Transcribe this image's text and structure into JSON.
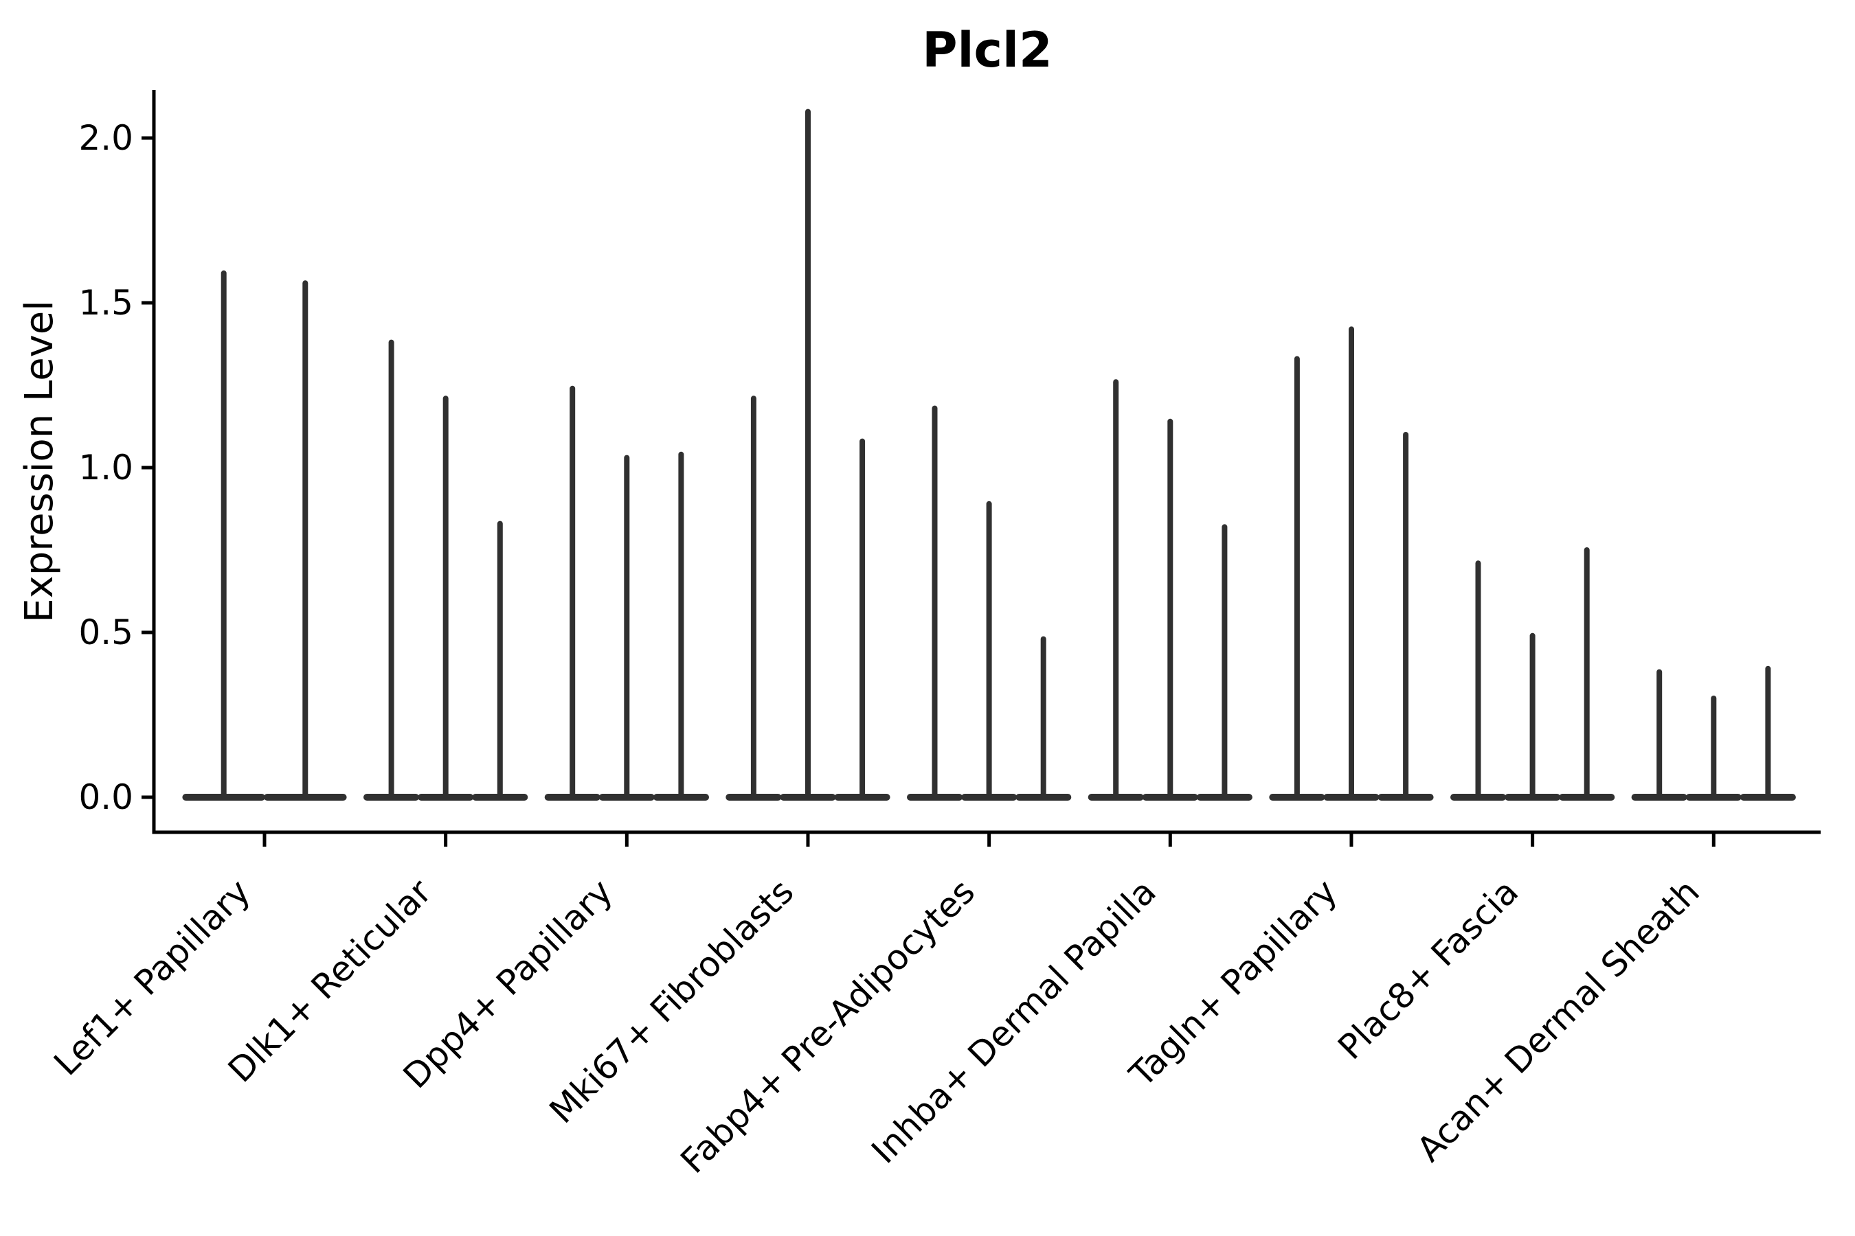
{
  "title": "Plcl2",
  "axes": {
    "ylabel": "Expression Level",
    "ytick_labels": [
      "0.0",
      "0.5",
      "1.0",
      "1.5",
      "2.0"
    ],
    "yticks": [
      0.0,
      0.5,
      1.0,
      1.5,
      2.0
    ]
  },
  "colors": {
    "background": "#ffffff",
    "violin_ink": "#303030",
    "axis_ink": "#000000"
  },
  "chart_data": {
    "type": "violin",
    "title": "Plcl2",
    "xlabel": "",
    "ylabel": "Expression Level",
    "yticks": [
      0.0,
      0.5,
      1.0,
      1.5,
      2.0
    ],
    "ytick_labels": [
      "0.0",
      "0.5",
      "1.0",
      "1.5",
      "2.0"
    ],
    "ylim": [
      -0.106,
      2.145
    ],
    "grid": false,
    "legend": "none",
    "categories": [
      "Lef1+ Papillary",
      "Dlk1+ Reticular",
      "Dpp4+ Papillary",
      "Mki67+ Fibroblasts",
      "Fabp4+ Pre-Adipocytes",
      "Inhba+ Dermal Papilla",
      "Tagln+ Papillary",
      "Plac8+ Fascia",
      "Acan+ Dermal Sheath"
    ],
    "series": [
      {
        "category": "Lef1+ Papillary",
        "violin_maxima": [
          1.59,
          1.56
        ]
      },
      {
        "category": "Dlk1+ Reticular",
        "violin_maxima": [
          1.38,
          1.21,
          0.83
        ]
      },
      {
        "category": "Dpp4+ Papillary",
        "violin_maxima": [
          1.24,
          1.03,
          1.04
        ]
      },
      {
        "category": "Mki67+ Fibroblasts",
        "violin_maxima": [
          1.21,
          2.08,
          1.08
        ]
      },
      {
        "category": "Fabp4+ Pre-Adipocytes",
        "violin_maxima": [
          1.18,
          0.89,
          0.48
        ]
      },
      {
        "category": "Inhba+ Dermal Papilla",
        "violin_maxima": [
          1.26,
          1.14,
          0.82
        ]
      },
      {
        "category": "Tagln+ Papillary",
        "violin_maxima": [
          1.33,
          1.42,
          1.1
        ]
      },
      {
        "category": "Plac8+ Fascia",
        "violin_maxima": [
          0.71,
          0.49,
          0.75
        ]
      },
      {
        "category": "Acan+ Dermal Sheath",
        "violin_maxima": [
          0.38,
          0.3,
          0.39
        ]
      }
    ],
    "violin_body": "flat pancake at 0 with thin spike to maximum"
  }
}
